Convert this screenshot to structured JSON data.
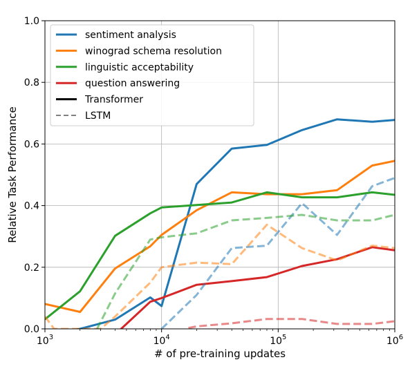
{
  "chart_data": {
    "type": "line",
    "xlabel": "# of pre-training updates",
    "ylabel": "Relative Task Performance",
    "xscale": "log",
    "xlim": [
      1000,
      1000000
    ],
    "ylim": [
      0,
      1.0
    ],
    "grid": true,
    "legend_position": "top-left",
    "x_ticks": [
      {
        "value": 1000,
        "base": "10",
        "exp": "3"
      },
      {
        "value": 10000,
        "base": "10",
        "exp": "4"
      },
      {
        "value": 100000,
        "base": "10",
        "exp": "5"
      },
      {
        "value": 1000000,
        "base": "10",
        "exp": "6"
      }
    ],
    "y_ticks": [
      {
        "value": 0.0,
        "label": "0.0"
      },
      {
        "value": 0.2,
        "label": "0.2"
      },
      {
        "value": 0.4,
        "label": "0.4"
      },
      {
        "value": 0.6,
        "label": "0.6"
      },
      {
        "value": 0.8,
        "label": "0.8"
      },
      {
        "value": 1.0,
        "label": "1.0"
      }
    ],
    "legend": [
      {
        "label": "sentiment analysis",
        "color": "#1f77b4",
        "style": "solid"
      },
      {
        "label": "winograd schema resolution",
        "color": "#ff7f0e",
        "style": "solid"
      },
      {
        "label": "linguistic acceptability",
        "color": "#2ca02c",
        "style": "solid"
      },
      {
        "label": "question answering",
        "color": "#d62728",
        "style": "solid"
      },
      {
        "label": "Transformer",
        "color": "#000000",
        "style": "solid"
      },
      {
        "label": "LSTM",
        "color": "#808080",
        "style": "dashed"
      }
    ],
    "series": [
      {
        "task": "sentiment analysis",
        "model": "Transformer",
        "color": "#1f77b4",
        "style": "solid",
        "x": [
          1000,
          2000,
          4000,
          8000,
          10000,
          20000,
          40000,
          80000,
          160000,
          320000,
          640000,
          1000000
        ],
        "y": [
          -0.02,
          0.0,
          0.03,
          0.102,
          0.074,
          0.47,
          0.585,
          0.597,
          0.645,
          0.68,
          0.672,
          0.678
        ]
      },
      {
        "task": "winograd schema resolution",
        "model": "Transformer",
        "color": "#ff7f0e",
        "style": "solid",
        "x": [
          1000,
          2000,
          4000,
          8000,
          10000,
          20000,
          40000,
          80000,
          160000,
          320000,
          640000,
          1000000
        ],
        "y": [
          0.081,
          0.055,
          0.196,
          0.268,
          0.305,
          0.385,
          0.443,
          0.437,
          0.437,
          0.45,
          0.53,
          0.545
        ]
      },
      {
        "task": "linguistic acceptability",
        "model": "Transformer",
        "color": "#2ca02c",
        "style": "solid",
        "x": [
          1000,
          2000,
          4000,
          8000,
          10000,
          20000,
          40000,
          80000,
          160000,
          320000,
          640000,
          1000000
        ],
        "y": [
          0.031,
          0.122,
          0.302,
          0.375,
          0.394,
          0.402,
          0.41,
          0.443,
          0.427,
          0.427,
          0.443,
          0.435
        ]
      },
      {
        "task": "question answering",
        "model": "Transformer",
        "color": "#d62728",
        "style": "solid",
        "x": [
          4000,
          4500,
          8000,
          10000,
          20000,
          40000,
          80000,
          160000,
          320000,
          640000,
          1000000
        ],
        "y": [
          -0.04,
          0.0,
          0.088,
          0.1,
          0.143,
          0.155,
          0.168,
          0.204,
          0.226,
          0.265,
          0.255
        ]
      },
      {
        "task": "sentiment analysis",
        "model": "LSTM",
        "color": "#1f77b4",
        "style": "dashed",
        "x": [
          10000,
          20000,
          40000,
          80000,
          160000,
          320000,
          640000,
          1000000
        ],
        "y": [
          0.0,
          0.11,
          0.262,
          0.27,
          0.408,
          0.305,
          0.463,
          0.49
        ]
      },
      {
        "task": "winograd schema resolution",
        "model": "LSTM",
        "color": "#ff7f0e",
        "style": "dashed",
        "x": [
          1000,
          1200,
          3000,
          4000,
          8000,
          10000,
          20000,
          40000,
          80000,
          160000,
          320000,
          640000,
          1000000
        ],
        "y": [
          0.04,
          0.0,
          0.0,
          0.04,
          0.15,
          0.2,
          0.215,
          0.21,
          0.338,
          0.262,
          0.222,
          0.27,
          0.262
        ]
      },
      {
        "task": "linguistic acceptability",
        "model": "LSTM",
        "color": "#2ca02c",
        "style": "dashed",
        "x": [
          2800,
          4000,
          8000,
          10000,
          20000,
          40000,
          80000,
          160000,
          320000,
          640000,
          1000000
        ],
        "y": [
          0.0,
          0.115,
          0.29,
          0.297,
          0.31,
          0.352,
          0.36,
          0.37,
          0.352,
          0.352,
          0.37
        ]
      },
      {
        "task": "question answering",
        "model": "LSTM",
        "color": "#d62728",
        "style": "dashed",
        "x": [
          17000,
          20000,
          40000,
          80000,
          160000,
          320000,
          640000,
          1000000
        ],
        "y": [
          0.003,
          0.008,
          0.018,
          0.032,
          0.032,
          0.016,
          0.016,
          0.025
        ]
      }
    ]
  }
}
